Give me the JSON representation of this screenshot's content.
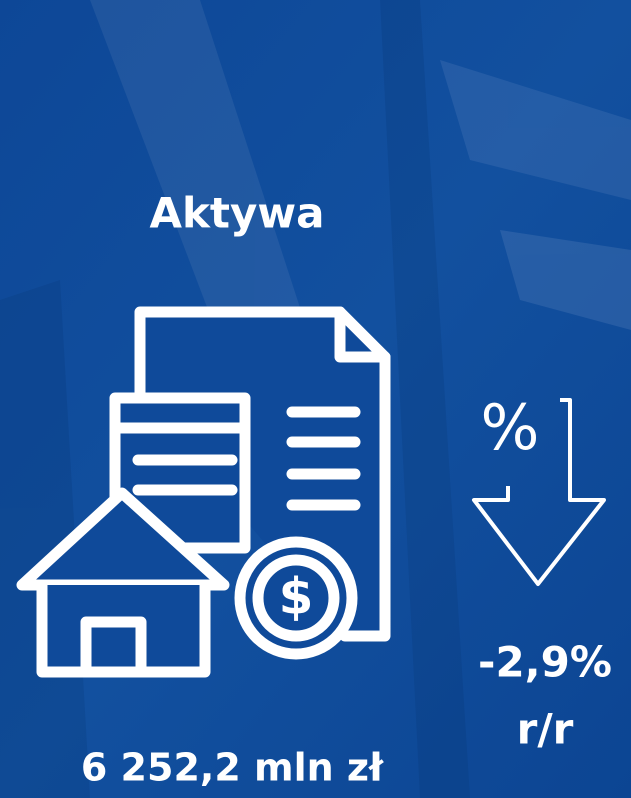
{
  "title": "Aktywa",
  "value": "6 252,2 mln zł",
  "change": {
    "value": "-2,9%",
    "period": "r/r"
  },
  "icons": {
    "percent_symbol": "%",
    "currency_symbol": "$"
  }
}
